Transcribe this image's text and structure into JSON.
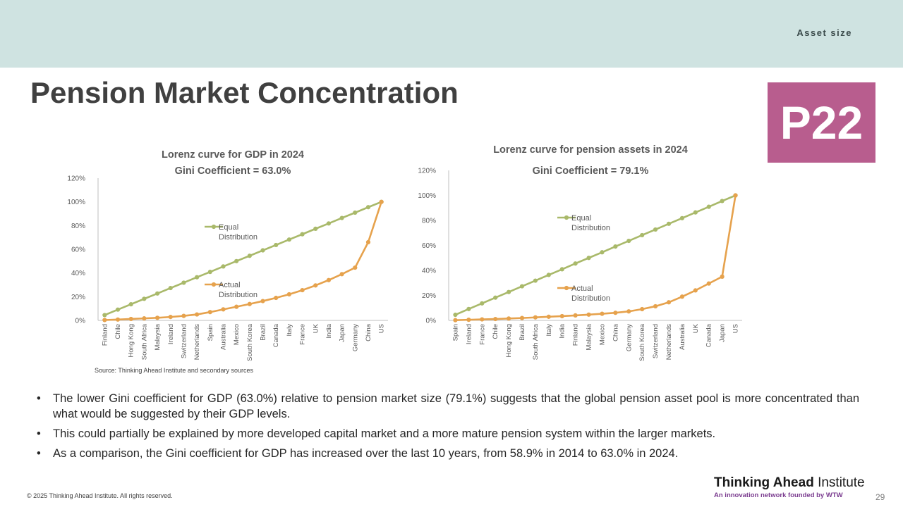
{
  "header": {
    "section": "Asset size",
    "title": "Pension Market Concentration",
    "badge": "P22"
  },
  "colors": {
    "equal": "#a9b96a",
    "actual": "#e6a24d",
    "badge": "#b85d8e",
    "topbar": "#cfe3e1",
    "axis": "#bfbfbf"
  },
  "chart_data": [
    {
      "type": "line",
      "title": "Lorenz curve for GDP in 2024",
      "subtitle": "Gini Coefficient = 63.0%",
      "ylim": [
        0,
        120
      ],
      "yticks": [
        "0%",
        "20%",
        "40%",
        "60%",
        "80%",
        "100%",
        "120%"
      ],
      "categories": [
        "Finland",
        "Chile",
        "Hong Kong",
        "South Africa",
        "Malaysia",
        "Ireland",
        "Switzerland",
        "Netherlands",
        "Spain",
        "Australia",
        "Mexico",
        "South Korea",
        "Brazil",
        "Canada",
        "Italy",
        "France",
        "UK",
        "India",
        "Japan",
        "Germany",
        "China",
        "US"
      ],
      "series": [
        {
          "name": "Equal Distribution",
          "legend_line1": "Equal",
          "legend_line2": "Distribution",
          "values": [
            4.5,
            9.1,
            13.6,
            18.2,
            22.7,
            27.3,
            31.8,
            36.4,
            40.9,
            45.5,
            50.0,
            54.5,
            59.1,
            63.6,
            68.2,
            72.7,
            77.3,
            81.8,
            86.4,
            90.9,
            95.5,
            100
          ]
        },
        {
          "name": "Actual Distribution",
          "legend_line1": "Actual",
          "legend_line2": "Distribution",
          "values": [
            0.3,
            0.7,
            1.2,
            1.7,
            2.2,
            2.9,
            3.8,
            5.0,
            7.0,
            9.3,
            11.5,
            13.8,
            16.3,
            19.0,
            22.0,
            25.5,
            29.5,
            34.0,
            39.0,
            44.5,
            66.0,
            100
          ]
        }
      ],
      "source": "Source: Thinking Ahead Institute and secondary sources"
    },
    {
      "type": "line",
      "title": "Lorenz curve for pension assets in 2024",
      "subtitle": "Gini Coefficient = 79.1%",
      "ylim": [
        0,
        120
      ],
      "yticks": [
        "0%",
        "20%",
        "40%",
        "60%",
        "80%",
        "100%",
        "120%"
      ],
      "categories": [
        "Spain",
        "Ireland",
        "France",
        "Chile",
        "Hong Kong",
        "Brazil",
        "South Africa",
        "Italy",
        "India",
        "Finland",
        "Malaysia",
        "Mexico",
        "China",
        "Germany",
        "South Korea",
        "Switzerland",
        "Netherlands",
        "Australia",
        "UK",
        "Canada",
        "Japan",
        "US"
      ],
      "series": [
        {
          "name": "Equal Distribution",
          "legend_line1": "Equal",
          "legend_line2": "Distribution",
          "values": [
            4.5,
            9.1,
            13.6,
            18.2,
            22.7,
            27.3,
            31.8,
            36.4,
            40.9,
            45.5,
            50.0,
            54.5,
            59.1,
            63.6,
            68.2,
            72.7,
            77.3,
            81.8,
            86.4,
            90.9,
            95.5,
            100
          ]
        },
        {
          "name": "Actual Distribution",
          "legend_line1": "Actual",
          "legend_line2": "Distribution",
          "values": [
            0.2,
            0.5,
            0.8,
            1.1,
            1.5,
            1.9,
            2.4,
            2.9,
            3.4,
            4.0,
            4.6,
            5.3,
            6.1,
            7.2,
            9.0,
            11.3,
            14.5,
            19.0,
            24.0,
            29.5,
            35.0,
            100
          ]
        }
      ]
    }
  ],
  "bullets": [
    "The lower Gini coefficient for GDP (63.0%) relative to pension market size (79.1%) suggests that the global pension asset pool is more concentrated than what would be suggested by their GDP levels.",
    "This could partially be explained by more developed capital market and a more mature pension system within the larger markets.",
    "As a comparison, the Gini coefficient for GDP has increased over the last 10 years, from 58.9% in 2014 to 63.0% in 2024."
  ],
  "footer": {
    "copyright": "© 2025 Thinking Ahead Institute. All rights reserved.",
    "logo_bold": "Thinking Ahead",
    "logo_regular": " Institute",
    "logo_tagline": "An innovation network founded by WTW",
    "page_number": "29"
  }
}
